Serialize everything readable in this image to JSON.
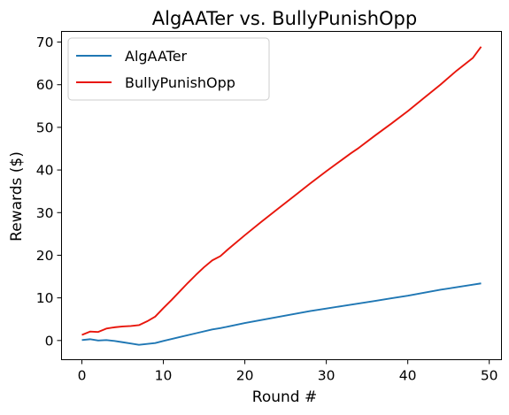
{
  "chart_data": {
    "type": "line",
    "title": "AlgAATer vs. BullyPunishOpp",
    "xlabel": "Round #",
    "ylabel": "Rewards ($)",
    "xlim": [
      -2.5,
      51.5
    ],
    "ylim": [
      -4.5,
      72.5
    ],
    "xticks": [
      0,
      10,
      20,
      30,
      40,
      50
    ],
    "yticks": [
      0,
      10,
      20,
      30,
      40,
      50,
      60,
      70
    ],
    "grid": false,
    "legend_position": "top-left",
    "series": [
      {
        "name": "AlgAATer",
        "color": "#1f77b4",
        "points": [
          [
            0,
            0.1
          ],
          [
            1,
            0.3
          ],
          [
            2,
            0.0
          ],
          [
            3,
            0.1
          ],
          [
            4,
            -0.1
          ],
          [
            5,
            -0.4
          ],
          [
            6,
            -0.7
          ],
          [
            7,
            -1.0
          ],
          [
            8,
            -0.8
          ],
          [
            9,
            -0.6
          ],
          [
            10,
            -0.1
          ],
          [
            12,
            0.8
          ],
          [
            14,
            1.7
          ],
          [
            16,
            2.6
          ],
          [
            17,
            2.9
          ],
          [
            18,
            3.3
          ],
          [
            20,
            4.1
          ],
          [
            22,
            4.8
          ],
          [
            24,
            5.5
          ],
          [
            26,
            6.2
          ],
          [
            28,
            6.9
          ],
          [
            30,
            7.5
          ],
          [
            32,
            8.1
          ],
          [
            34,
            8.7
          ],
          [
            36,
            9.3
          ],
          [
            38,
            9.9
          ],
          [
            40,
            10.5
          ],
          [
            42,
            11.2
          ],
          [
            44,
            11.9
          ],
          [
            46,
            12.5
          ],
          [
            48,
            13.1
          ],
          [
            49,
            13.4
          ]
        ]
      },
      {
        "name": "BullyPunishOpp",
        "color": "#e8160c",
        "points": [
          [
            0,
            1.3
          ],
          [
            1,
            2.1
          ],
          [
            2,
            2.0
          ],
          [
            3,
            2.8
          ],
          [
            4,
            3.1
          ],
          [
            5,
            3.3
          ],
          [
            6,
            3.4
          ],
          [
            7,
            3.6
          ],
          [
            8,
            4.5
          ],
          [
            9,
            5.6
          ],
          [
            10,
            7.6
          ],
          [
            11,
            9.5
          ],
          [
            12,
            11.5
          ],
          [
            13,
            13.5
          ],
          [
            14,
            15.4
          ],
          [
            15,
            17.2
          ],
          [
            16,
            18.8
          ],
          [
            17,
            19.8
          ],
          [
            18,
            21.5
          ],
          [
            20,
            24.7
          ],
          [
            22,
            27.8
          ],
          [
            24,
            30.8
          ],
          [
            26,
            33.8
          ],
          [
            27,
            35.3
          ],
          [
            28,
            36.8
          ],
          [
            30,
            39.7
          ],
          [
            32,
            42.5
          ],
          [
            33,
            43.9
          ],
          [
            34,
            45.2
          ],
          [
            36,
            48.1
          ],
          [
            38,
            50.9
          ],
          [
            40,
            53.8
          ],
          [
            42,
            56.9
          ],
          [
            44,
            60.0
          ],
          [
            46,
            63.3
          ],
          [
            48,
            66.3
          ],
          [
            49,
            68.9
          ]
        ]
      }
    ]
  }
}
